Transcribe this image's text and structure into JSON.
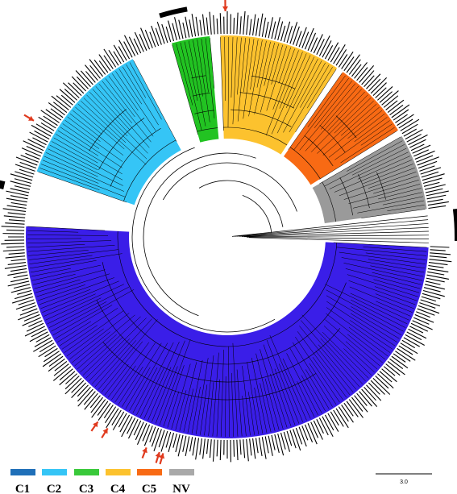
{
  "figure": {
    "clades": [
      {
        "id": "C1",
        "label": "C1",
        "color": "#1F6FB8"
      },
      {
        "id": "C2",
        "label": "C2",
        "color": "#35C5F6"
      },
      {
        "id": "C3",
        "label": "C3",
        "color": "#39C93A"
      },
      {
        "id": "C4",
        "label": "C4",
        "color": "#FCC22E"
      },
      {
        "id": "C5",
        "label": "C5",
        "color": "#F86A14"
      },
      {
        "id": "NV",
        "label": "NV",
        "color": "#A9A9A9"
      }
    ],
    "sectors": [
      {
        "name": "blue-main",
        "color": "#3A1EE8",
        "start": 93,
        "end": 273
      },
      {
        "name": "light-blue",
        "color": "#35C5F6",
        "start": 289,
        "end": 332
      },
      {
        "name": "green",
        "color": "#22C322",
        "start": 344,
        "end": 355
      },
      {
        "name": "yellow",
        "color": "#FCC22E",
        "start": 358,
        "end": 33
      },
      {
        "name": "orange",
        "color": "#F86A14",
        "start": 35,
        "end": 58
      },
      {
        "name": "gray",
        "color": "#9A9A9A",
        "start": 60,
        "end": 82
      }
    ],
    "scale_bar": {
      "label": "3.0"
    },
    "markers": {
      "arrow_color": "#E03A1E",
      "bar_color": "#000000"
    }
  }
}
